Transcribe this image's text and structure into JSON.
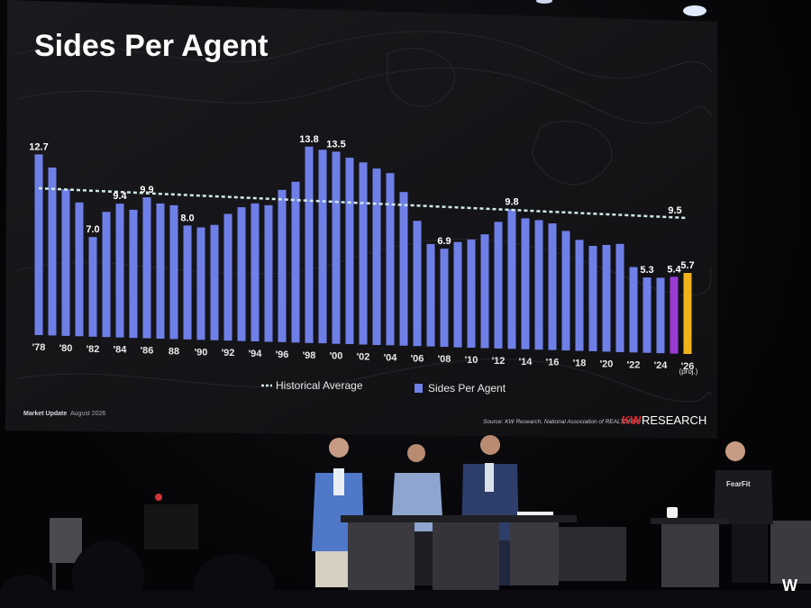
{
  "slide": {
    "title": "Sides Per Agent",
    "footer_left": "Market Update",
    "footer_date": "August 2026",
    "source": "Source: KW Research, National Association of REALTORS®",
    "brand_kw": "KW",
    "brand_research": "RESEARCH",
    "proj_note": "(proj.)"
  },
  "legend": {
    "average": "Historical Average",
    "bars": "Sides Per Agent"
  },
  "colors": {
    "bar": "#6f7fe8",
    "bar_2025": "#9a3bd6",
    "bar_2026": "#f2b21a",
    "average_line": "#cfe9e4",
    "brand_red": "#e3242b"
  },
  "chart_data": {
    "type": "bar",
    "title": "Sides Per Agent",
    "x": [
      1978,
      1979,
      1980,
      1981,
      1982,
      1983,
      1984,
      1985,
      1986,
      1987,
      1988,
      1989,
      1990,
      1991,
      1992,
      1993,
      1994,
      1995,
      1996,
      1997,
      1998,
      1999,
      2000,
      2001,
      2002,
      2003,
      2004,
      2005,
      2006,
      2007,
      2008,
      2009,
      2010,
      2011,
      2012,
      2013,
      2014,
      2015,
      2016,
      2017,
      2018,
      2019,
      2020,
      2021,
      2022,
      2023,
      2024,
      2025,
      2026
    ],
    "values": [
      12.7,
      11.8,
      10.3,
      9.4,
      7.0,
      8.8,
      9.4,
      9.0,
      9.9,
      9.5,
      9.4,
      8.0,
      7.9,
      8.1,
      8.9,
      9.4,
      9.7,
      9.6,
      10.7,
      11.3,
      13.8,
      13.6,
      13.5,
      13.1,
      12.8,
      12.4,
      12.1,
      10.8,
      8.8,
      7.2,
      6.9,
      7.4,
      7.6,
      8.0,
      8.9,
      9.8,
      9.2,
      9.1,
      8.9,
      8.4,
      7.8,
      7.4,
      7.5,
      7.6,
      6.0,
      5.3,
      5.3,
      5.4,
      5.7
    ],
    "data_labels": {
      "1978": "12.7",
      "1982": "7.0",
      "1984": "9.4",
      "1986": "9.9",
      "1989": "8.0",
      "1998": "13.8",
      "2000": "13.5",
      "2008": "6.9",
      "2013": "9.8",
      "2023": "5.3",
      "2025": "5.4",
      "2026": "5.7"
    },
    "average_label": "9.5",
    "tick_labels": [
      "'78",
      "'80",
      "'82",
      "'84",
      "'86",
      "88",
      "'90",
      "'92",
      "'94",
      "'96",
      "'98",
      "'00",
      "'02",
      "'04",
      "'06",
      "'08",
      "'10",
      "'12",
      "'14",
      "'16",
      "'18",
      "'20",
      "'22",
      "'24",
      "'26"
    ],
    "ylim": [
      0,
      14.5
    ],
    "legend_position": "bottom",
    "grid": false
  },
  "stage": {
    "shirt_text": "FearFit",
    "corner_logo": "W"
  }
}
